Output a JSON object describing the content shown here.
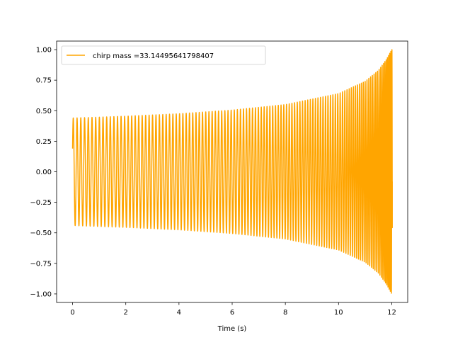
{
  "chart_data": {
    "type": "line",
    "title": "",
    "xlabel": "Time (s)",
    "ylabel": "",
    "xlim": [
      -0.6,
      12.6
    ],
    "ylim": [
      -1.07,
      1.07
    ],
    "x_ticks": [
      0,
      2,
      4,
      6,
      8,
      10,
      12
    ],
    "x_tick_labels": [
      "0",
      "2",
      "4",
      "6",
      "8",
      "10",
      "12"
    ],
    "y_ticks": [
      -1.0,
      -0.75,
      -0.5,
      -0.25,
      0.0,
      0.25,
      0.5,
      0.75,
      1.0
    ],
    "y_tick_labels": [
      "−1.00",
      "−0.75",
      "−0.50",
      "−0.25",
      "0.00",
      "0.25",
      "0.50",
      "0.75",
      "1.00"
    ],
    "grid": false,
    "legend": {
      "position": "top-left",
      "entries": [
        "chirp mass =33.14495641798407"
      ]
    },
    "series": [
      {
        "name": "chirp mass =33.14495641798407",
        "color": "#ffa500",
        "description_of_shape": "chirp oscillation: amplitude grows from ~0.44 to 1.0 and frequency increases as t approaches 12",
        "t_start": 0.0,
        "t_end": 12.02,
        "t_coalescence": 12.04,
        "initial_value": 0.19,
        "amplitude_envelope": [
          [
            0.0,
            0.44
          ],
          [
            2.0,
            0.455
          ],
          [
            4.0,
            0.475
          ],
          [
            6.0,
            0.505
          ],
          [
            8.0,
            0.55
          ],
          [
            10.0,
            0.64
          ],
          [
            11.0,
            0.74
          ],
          [
            11.5,
            0.83
          ],
          [
            11.8,
            0.92
          ],
          [
            12.0,
            1.0
          ]
        ],
        "approx_cycles_per_second": [
          [
            0.0,
            7.0
          ],
          [
            6.0,
            8.5
          ],
          [
            10.0,
            11.0
          ],
          [
            11.5,
            16.0
          ],
          [
            12.0,
            25.0
          ]
        ]
      }
    ]
  }
}
